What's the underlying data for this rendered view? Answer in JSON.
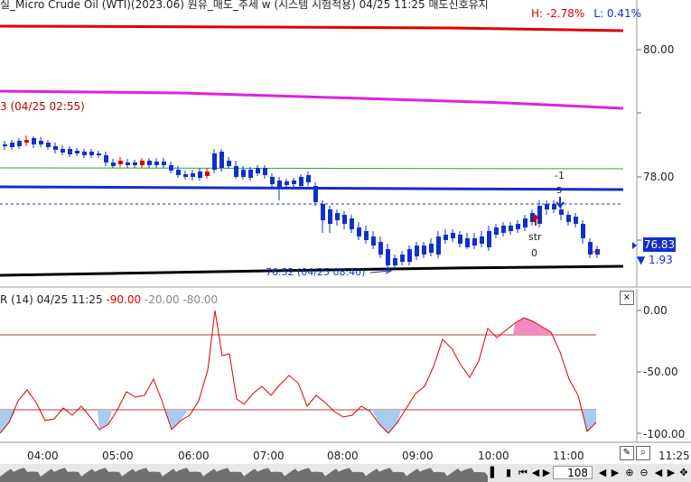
{
  "header": {
    "title": "실_Micro Crude Oil (WTI)(2023.06) 원유_매도_추세 w (시스템 시험적용) 04/25 11:25 매도신호유지",
    "high_change": "H: -2.78%",
    "low_change": "L: 0.41%"
  },
  "price_panel": {
    "y_labels": [
      "80.00",
      "78.00"
    ],
    "current_price": "76.83",
    "change": "▼ 1.93",
    "red_line_label": "3 (04/25 02:55)",
    "low_label": "76.52 (04/25 08:40)",
    "signal_top": "-1",
    "signal_mid": "5",
    "signal_str": "str",
    "signal_zero": "0",
    "colors": {
      "up": "#e00000",
      "down": "#1030c8",
      "magenta": "#e020e0",
      "green": "#20b020",
      "black": "#000000"
    }
  },
  "indicator_panel": {
    "title_prefix": "R  (14) 04/25 11:25",
    "value_red": "-90.00",
    "value_gray": "-20.00 -80.00",
    "y_labels": [
      "0.00",
      "-50.00",
      "-100.00"
    ]
  },
  "time_axis": {
    "labels": [
      "04:00",
      "05:00",
      "06:00",
      "07:00",
      "08:00",
      "09:00",
      "10:00",
      "11:00",
      "11:25"
    ]
  },
  "bottom_bar": {
    "zoom_value": "108"
  }
}
